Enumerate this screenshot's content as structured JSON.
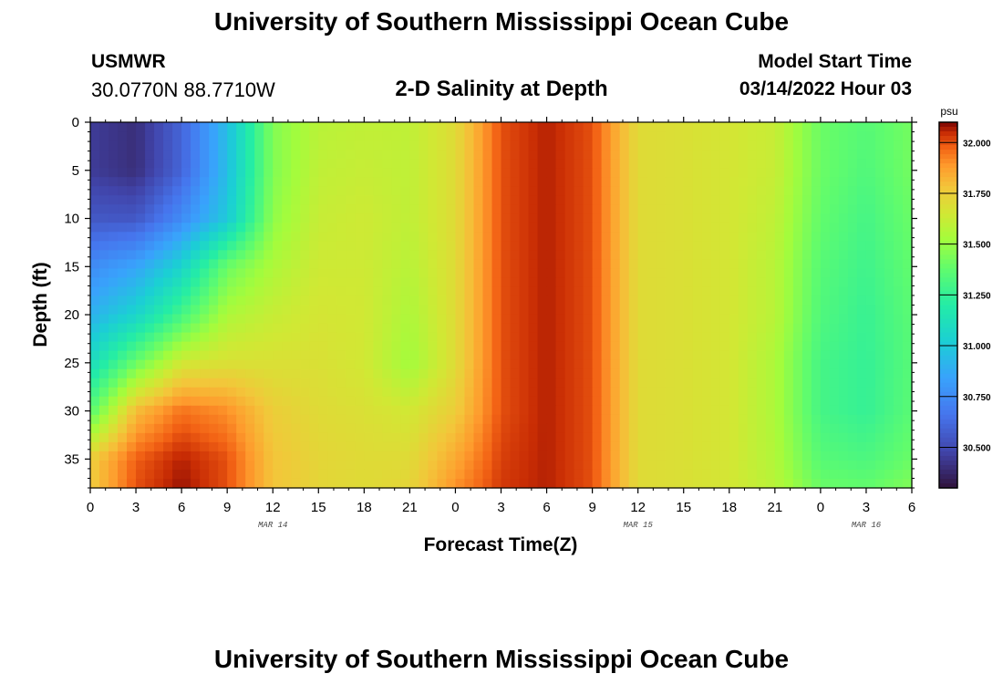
{
  "header": {
    "title": "University of Southern Mississippi Ocean Cube",
    "station": "USMWR",
    "coordinates": "30.0770N  88.7710W",
    "subtitle": "2-D Salinity at Depth",
    "start_label": "Model Start Time",
    "start_value": "03/14/2022 Hour 03"
  },
  "footer": {
    "title": "University of Southern Mississippi Ocean Cube"
  },
  "chart_data": {
    "type": "heatmap",
    "title": "2-D Salinity at Depth",
    "xlabel": "Forecast Time(Z)",
    "ylabel": "Depth (ft)",
    "x_unit": "hours since 00Z MAR 14",
    "xlim": [
      0,
      54
    ],
    "ylim": [
      38,
      0
    ],
    "x_ticks": [
      0,
      3,
      6,
      9,
      12,
      15,
      18,
      21,
      24,
      27,
      30,
      33,
      36,
      39,
      42,
      45,
      48,
      51,
      54
    ],
    "x_tick_labels": [
      "0",
      "3",
      "6",
      "9",
      "12",
      "15",
      "18",
      "21",
      "0",
      "3",
      "6",
      "9",
      "12",
      "15",
      "18",
      "21",
      "0",
      "3",
      "6"
    ],
    "y_ticks": [
      0,
      5,
      10,
      15,
      20,
      25,
      30,
      35
    ],
    "y_tick_labels": [
      "0",
      "5",
      "10",
      "15",
      "20",
      "25",
      "30",
      "35"
    ],
    "date_labels": [
      {
        "x": 12,
        "text": "MAR 14"
      },
      {
        "x": 36,
        "text": "MAR 15"
      },
      {
        "x": 51,
        "text": "MAR 16"
      }
    ],
    "colorbar": {
      "unit": "psu",
      "min": 30.3,
      "max": 32.1,
      "ticks": [
        32.0,
        31.75,
        31.5,
        31.25,
        31.0,
        30.75,
        30.5
      ],
      "tick_labels": [
        "32.000",
        "31.750",
        "31.500",
        "31.250",
        "31.000",
        "30.750",
        "30.500"
      ]
    },
    "grid_x": [
      0,
      3,
      6,
      9,
      12,
      15,
      18,
      21,
      24,
      27,
      30,
      33,
      36,
      39,
      42,
      45,
      48,
      51,
      54
    ],
    "grid_y": [
      0,
      5,
      10,
      15,
      20,
      25,
      30,
      35,
      38
    ],
    "salinity": [
      [
        30.45,
        30.4,
        30.6,
        30.95,
        31.45,
        31.58,
        31.6,
        31.6,
        31.7,
        32.0,
        32.06,
        32.0,
        31.7,
        31.68,
        31.66,
        31.62,
        31.4,
        31.35,
        31.42
      ],
      [
        30.45,
        30.4,
        30.6,
        30.95,
        31.45,
        31.6,
        31.62,
        31.6,
        31.7,
        32.0,
        32.06,
        32.0,
        31.7,
        31.68,
        31.66,
        31.62,
        31.4,
        31.33,
        31.42
      ],
      [
        30.55,
        30.55,
        30.75,
        31.0,
        31.48,
        31.62,
        31.64,
        31.6,
        31.7,
        32.0,
        32.06,
        32.0,
        31.7,
        31.68,
        31.66,
        31.6,
        31.38,
        31.3,
        31.4
      ],
      [
        30.75,
        30.85,
        31.05,
        31.4,
        31.55,
        31.64,
        31.64,
        31.58,
        31.7,
        32.0,
        32.06,
        32.0,
        31.7,
        31.68,
        31.66,
        31.58,
        31.35,
        31.28,
        31.38
      ],
      [
        30.9,
        31.05,
        31.3,
        31.55,
        31.62,
        31.66,
        31.65,
        31.55,
        31.7,
        32.0,
        32.06,
        32.0,
        31.7,
        31.68,
        31.66,
        31.58,
        31.33,
        31.26,
        31.36
      ],
      [
        31.1,
        31.4,
        31.65,
        31.68,
        31.68,
        31.68,
        31.65,
        31.52,
        31.7,
        32.0,
        32.06,
        32.0,
        31.7,
        31.68,
        31.66,
        31.55,
        31.3,
        31.25,
        31.35
      ],
      [
        31.35,
        31.8,
        31.95,
        31.9,
        31.75,
        31.7,
        31.68,
        31.65,
        31.75,
        32.0,
        32.06,
        32.0,
        31.7,
        31.68,
        31.66,
        31.55,
        31.3,
        31.25,
        31.36
      ],
      [
        31.75,
        31.98,
        32.06,
        32.0,
        31.78,
        31.72,
        31.7,
        31.7,
        31.85,
        32.02,
        32.06,
        32.0,
        31.7,
        31.68,
        31.66,
        31.56,
        31.35,
        31.32,
        31.4
      ],
      [
        31.75,
        32.0,
        32.08,
        32.0,
        31.78,
        31.72,
        31.7,
        31.72,
        31.9,
        32.03,
        32.06,
        32.0,
        31.7,
        31.68,
        31.66,
        31.58,
        31.4,
        31.38,
        31.45
      ]
    ]
  }
}
